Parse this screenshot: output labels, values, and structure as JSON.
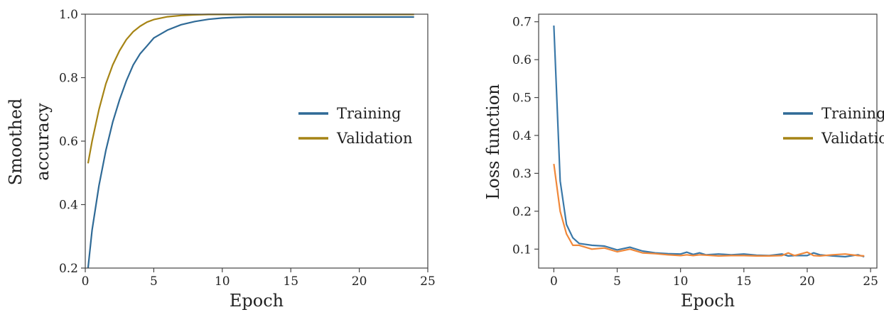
{
  "chart_data": [
    {
      "type": "line",
      "xlabel": "Epoch",
      "ylabel": [
        "Smoothed",
        "accuracy"
      ],
      "xlim": [
        0,
        25
      ],
      "ylim": [
        0.2,
        1.0
      ],
      "xticks": [
        0,
        5,
        10,
        15,
        20,
        25
      ],
      "yticks": [
        0.2,
        0.4,
        0.6,
        0.8,
        1.0
      ],
      "xtick_labels": [
        "0",
        "5",
        "10",
        "15",
        "20",
        "25"
      ],
      "ytick_labels": [
        "0.2",
        "0.4",
        "0.6",
        "0.8",
        "1.0"
      ],
      "grid": false,
      "legend_position": "center-right",
      "x": [
        0.2,
        0.5,
        1,
        1.5,
        2,
        2.5,
        3,
        3.5,
        4,
        4.5,
        5,
        6,
        7,
        8,
        9,
        10,
        11,
        12,
        13,
        14,
        15,
        16,
        17,
        18,
        19,
        20,
        21,
        22,
        23,
        24
      ],
      "series": [
        {
          "name": "Training",
          "color": "#2f6a96",
          "values": [
            0.2,
            0.32,
            0.46,
            0.57,
            0.66,
            0.73,
            0.79,
            0.84,
            0.875,
            0.9,
            0.925,
            0.95,
            0.967,
            0.977,
            0.984,
            0.988,
            0.99,
            0.991,
            0.991,
            0.991,
            0.991,
            0.991,
            0.991,
            0.991,
            0.991,
            0.991,
            0.991,
            0.991,
            0.991,
            0.991
          ]
        },
        {
          "name": "Validation",
          "color": "#a68415",
          "values": [
            0.53,
            0.6,
            0.7,
            0.78,
            0.84,
            0.885,
            0.92,
            0.945,
            0.962,
            0.975,
            0.983,
            0.992,
            0.996,
            0.998,
            0.999,
            0.999,
            0.999,
            0.999,
            0.999,
            0.999,
            0.999,
            0.999,
            0.999,
            0.999,
            0.999,
            0.999,
            0.999,
            0.999,
            0.999,
            0.999
          ]
        }
      ]
    },
    {
      "type": "line",
      "xlabel": "Epoch",
      "ylabel": [
        "Loss function"
      ],
      "xlim": [
        -1.2,
        25.5
      ],
      "ylim": [
        0.05,
        0.72
      ],
      "xticks": [
        0,
        5,
        10,
        15,
        20,
        25
      ],
      "yticks": [
        0.1,
        0.2,
        0.3,
        0.4,
        0.5,
        0.6,
        0.7
      ],
      "xtick_labels": [
        "0",
        "5",
        "10",
        "15",
        "20",
        "25"
      ],
      "ytick_labels": [
        "0.1",
        "0.2",
        "0.3",
        "0.4",
        "0.5",
        "0.6",
        "0.7"
      ],
      "grid": false,
      "legend_position": "center-right",
      "legend_colors": [
        "#2f6a96",
        "#a68415"
      ],
      "x": [
        0,
        0.5,
        1,
        1.5,
        2,
        3,
        4,
        5,
        6,
        7,
        8,
        9,
        10,
        10.5,
        11,
        11.5,
        12,
        13,
        14,
        15,
        16,
        17,
        18,
        18.5,
        19,
        20,
        20.5,
        21,
        22,
        23,
        24,
        24.5
      ],
      "series": [
        {
          "name": "Training",
          "color": "#3a78a8",
          "values": [
            0.69,
            0.28,
            0.165,
            0.13,
            0.115,
            0.11,
            0.108,
            0.098,
            0.105,
            0.095,
            0.09,
            0.088,
            0.087,
            0.092,
            0.086,
            0.09,
            0.085,
            0.087,
            0.085,
            0.087,
            0.084,
            0.083,
            0.087,
            0.082,
            0.083,
            0.083,
            0.09,
            0.085,
            0.082,
            0.08,
            0.085,
            0.08
          ]
        },
        {
          "name": "Validation",
          "color": "#f0883a",
          "values": [
            0.325,
            0.2,
            0.14,
            0.11,
            0.11,
            0.1,
            0.103,
            0.093,
            0.1,
            0.09,
            0.088,
            0.085,
            0.083,
            0.085,
            0.083,
            0.085,
            0.084,
            0.082,
            0.083,
            0.083,
            0.082,
            0.082,
            0.083,
            0.09,
            0.083,
            0.092,
            0.083,
            0.082,
            0.085,
            0.087,
            0.083,
            0.082
          ]
        }
      ]
    }
  ]
}
